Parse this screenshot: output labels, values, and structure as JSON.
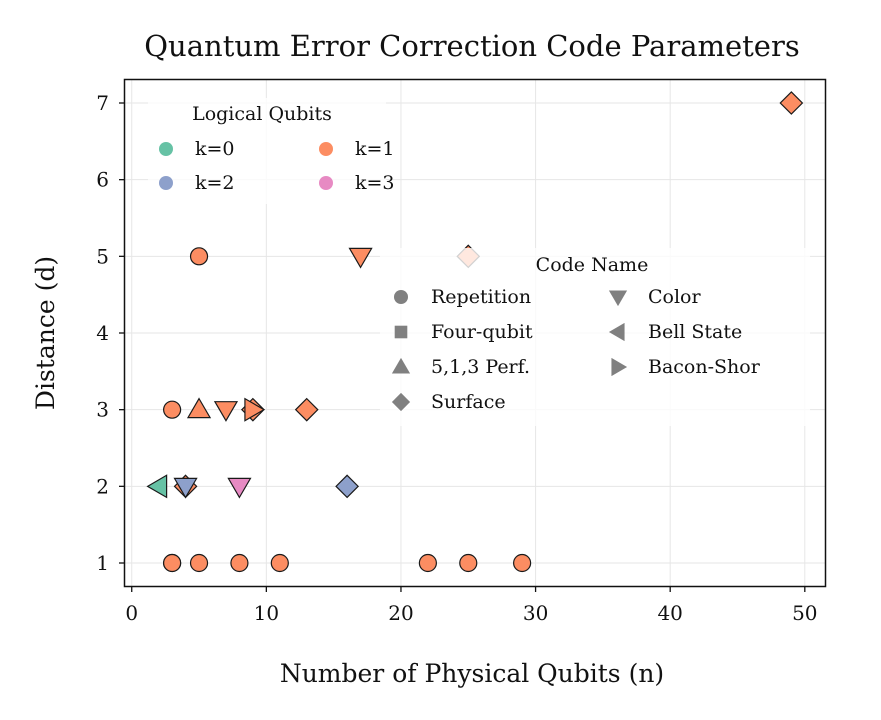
{
  "chart_data": {
    "type": "scatter",
    "title": "Quantum Error Correction Code Parameters",
    "xlabel": "Number of Physical Qubits (n)",
    "ylabel": "Distance (d)",
    "xlim": [
      -0.5,
      51.5
    ],
    "ylim": [
      0.7,
      7.3
    ],
    "xticks": [
      0,
      10,
      20,
      30,
      40,
      50
    ],
    "yticks": [
      1,
      2,
      3,
      4,
      5,
      6,
      7
    ],
    "xtick_labels": [
      "0",
      "10",
      "20",
      "30",
      "40",
      "50"
    ],
    "ytick_labels": [
      "1",
      "2",
      "3",
      "4",
      "5",
      "6",
      "7"
    ],
    "grid": true,
    "color_legend": {
      "title": "Logical Qubits",
      "placement": "top-left",
      "entries": [
        {
          "label": "k=0",
          "k": 0,
          "color": "#66c2a5"
        },
        {
          "label": "k=1",
          "k": 1,
          "color": "#fc8d62"
        },
        {
          "label": "k=2",
          "k": 2,
          "color": "#8da0cb"
        },
        {
          "label": "k=3",
          "k": 3,
          "color": "#e78ac3"
        }
      ]
    },
    "marker_legend": {
      "title": "Code Name",
      "placement": "center-right",
      "entries": [
        {
          "label": "Repetition",
          "marker": "circle"
        },
        {
          "label": "Four-qubit",
          "marker": "square"
        },
        {
          "label": "5,1,3 Perf.",
          "marker": "triangle-up"
        },
        {
          "label": "Surface",
          "marker": "diamond"
        },
        {
          "label": "Color",
          "marker": "triangle-down"
        },
        {
          "label": "Bell State",
          "marker": "triangle-left"
        },
        {
          "label": "Bacon-Shor",
          "marker": "triangle-right"
        }
      ]
    },
    "points": [
      {
        "n": 3,
        "d": 1,
        "k": 1,
        "code": "Repetition"
      },
      {
        "n": 3,
        "d": 1,
        "k": 1,
        "code": "Repetition"
      },
      {
        "n": 5,
        "d": 1,
        "k": 1,
        "code": "Repetition"
      },
      {
        "n": 8,
        "d": 1,
        "k": 1,
        "code": "Repetition"
      },
      {
        "n": 11,
        "d": 1,
        "k": 1,
        "code": "Repetition"
      },
      {
        "n": 22,
        "d": 1,
        "k": 1,
        "code": "Repetition"
      },
      {
        "n": 25,
        "d": 1,
        "k": 1,
        "code": "Repetition"
      },
      {
        "n": 29,
        "d": 1,
        "k": 1,
        "code": "Repetition"
      },
      {
        "n": 3,
        "d": 3,
        "k": 1,
        "code": "Repetition"
      },
      {
        "n": 5,
        "d": 5,
        "k": 1,
        "code": "Repetition"
      },
      {
        "n": 2,
        "d": 2,
        "k": 0,
        "code": "Bell State"
      },
      {
        "n": 4,
        "d": 2,
        "k": 1,
        "code": "Surface"
      },
      {
        "n": 4,
        "d": 2,
        "k": 2,
        "code": "Color"
      },
      {
        "n": 8,
        "d": 2,
        "k": 3,
        "code": "Color"
      },
      {
        "n": 16,
        "d": 2,
        "k": 2,
        "code": "Surface"
      },
      {
        "n": 5,
        "d": 3,
        "k": 1,
        "code": "5,1,3 Perf."
      },
      {
        "n": 7,
        "d": 3,
        "k": 1,
        "code": "Color"
      },
      {
        "n": 9,
        "d": 3,
        "k": 1,
        "code": "Surface"
      },
      {
        "n": 9,
        "d": 3,
        "k": 1,
        "code": "Bacon-Shor"
      },
      {
        "n": 13,
        "d": 3,
        "k": 1,
        "code": "Surface"
      },
      {
        "n": 17,
        "d": 5,
        "k": 1,
        "code": "Color"
      },
      {
        "n": 25,
        "d": 5,
        "k": 1,
        "code": "Surface"
      },
      {
        "n": 49,
        "d": 7,
        "k": 1,
        "code": "Surface"
      }
    ]
  }
}
